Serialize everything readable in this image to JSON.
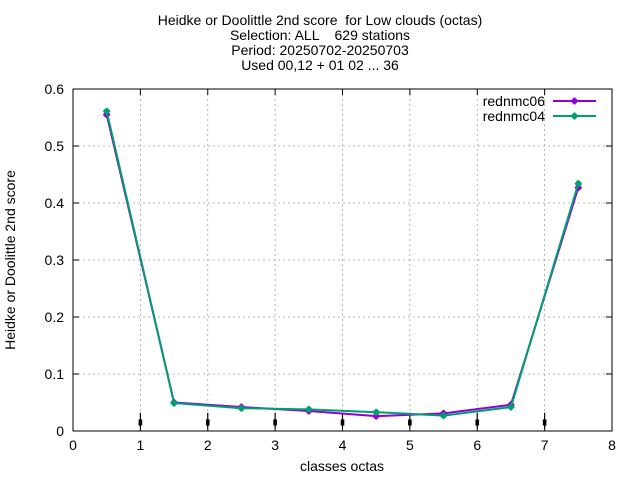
{
  "chart_data": {
    "type": "line",
    "title_lines": [
      "Heidke or Doolittle 2nd score  for Low clouds (octas)",
      "Selection: ALL    629 stations",
      "Period: 20250702-20250703",
      "Used 00,12 + 01 02 ... 36"
    ],
    "xlabel": "classes octas",
    "ylabel": "Heidke or Doolittle 2nd score",
    "xlim": [
      0,
      8
    ],
    "ylim": [
      0,
      0.6
    ],
    "xticks": [
      "0",
      "1",
      "2",
      "3",
      "4",
      "5",
      "6",
      "7",
      "8"
    ],
    "yticks": [
      "0",
      "0.1",
      "0.2",
      "0.3",
      "0.4",
      "0.5",
      "0.6"
    ],
    "grid": true,
    "legend_position": "top-right",
    "series": [
      {
        "name": "rednmc06",
        "color": "#9400d3",
        "x": [
          0.5,
          1.5,
          2.5,
          3.5,
          4.5,
          5.5,
          6.5,
          7.5
        ],
        "values": [
          0.555,
          0.05,
          0.042,
          0.035,
          0.026,
          0.031,
          0.046,
          0.427
        ]
      },
      {
        "name": "rednmc04",
        "color": "#009e73",
        "x": [
          0.5,
          1.5,
          2.5,
          3.5,
          4.5,
          5.5,
          6.5,
          7.5
        ],
        "values": [
          0.561,
          0.049,
          0.04,
          0.038,
          0.033,
          0.027,
          0.042,
          0.434
        ]
      }
    ],
    "error_bars": {
      "x": [
        1,
        2,
        3,
        4,
        5,
        6,
        7
      ],
      "low": [
        0.006,
        0.006,
        0.006,
        0.006,
        0.006,
        0.006,
        0.006
      ],
      "high": [
        0.032,
        0.032,
        0.032,
        0.032,
        0.032,
        0.032,
        0.032
      ],
      "center": [
        0.015,
        0.015,
        0.015,
        0.015,
        0.015,
        0.015,
        0.015
      ],
      "color": "#000000"
    }
  }
}
